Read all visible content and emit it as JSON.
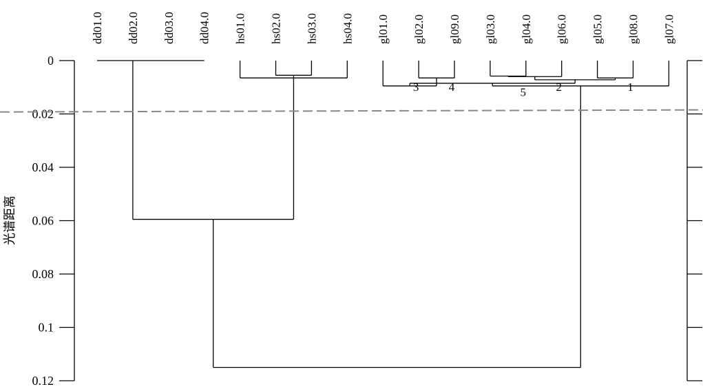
{
  "chart_data": {
    "type": "dendrogram",
    "ylabel": "光谱距离",
    "ylim": [
      0,
      0.12
    ],
    "yticks": [
      "0",
      "0.02",
      "0.04",
      "0.06",
      "0.08",
      "0.1",
      "0.12"
    ],
    "ytick_values": [
      0,
      0.02,
      0.04,
      0.06,
      0.08,
      0.1,
      0.12
    ],
    "leaves": [
      "dd01.0",
      "dd02.0",
      "dd03.0",
      "dd04.0",
      "hs01.0",
      "hs02.0",
      "hs03.0",
      "hs04.0",
      "gl01.0",
      "gl02.0",
      "gl09.0",
      "gl03.0",
      "gl04.0",
      "gl06.0",
      "gl05.0",
      "gl08.0",
      "gl07.0"
    ],
    "threshold": 0.019,
    "merges": [
      {
        "id": "dd",
        "left": "dd01.0",
        "right": "dd04.0",
        "height": 0,
        "stem_from": "dd02.0"
      },
      {
        "id": "h23",
        "left": "hs02.0",
        "right": "hs03.0",
        "height": 0.0055
      },
      {
        "id": "h14",
        "left": "hs01.0",
        "right": "hs04.0",
        "height": 0.0065
      },
      {
        "id": "hs",
        "left": "h23",
        "right": "h14",
        "height": 0.0068
      },
      {
        "id": "g29",
        "left": "gl02.0",
        "right": "gl09.0",
        "height": 0.0065
      },
      {
        "id": "g34",
        "left": "gl03.0",
        "right": "gl04.0",
        "height": 0.0058
      },
      {
        "id": "g346",
        "left": "g34",
        "right": "gl06.0",
        "height": 0.006
      },
      {
        "id": "g58",
        "left": "gl05.0",
        "right": "gl08.0",
        "height": 0.0065
      },
      {
        "id": "g1",
        "left": "gl01.0",
        "right": "g29",
        "height": 0.0095
      },
      {
        "id": "gA",
        "left": "g346",
        "right": "g58",
        "height": 0.0072
      },
      {
        "id": "gB",
        "left": "g1",
        "right": "gA",
        "height": 0.0085
      },
      {
        "id": "gl",
        "left": "gB",
        "right": "gl07.0",
        "height": 0.0095
      },
      {
        "id": "ddhs",
        "left": "dd",
        "right": "hs",
        "height": 0.0595
      },
      {
        "id": "all",
        "left": "ddhs",
        "right": "gl",
        "height": 0.115
      }
    ],
    "annotations": [
      {
        "text": "3",
        "x_leaf": "gl02.0",
        "height": 0.0098
      },
      {
        "text": "4",
        "x_leaf": "gl09.0",
        "height": 0.0098
      },
      {
        "text": "5",
        "x_leaf": "gl04.0",
        "height": 0.0118
      },
      {
        "text": "2",
        "x_leaf": "gl06.0",
        "height": 0.0098
      },
      {
        "text": "1",
        "x_leaf": "gl08.0",
        "height": 0.0098
      }
    ],
    "grid": false,
    "colors": {
      "line": "#000000",
      "threshold": "#888888"
    }
  }
}
